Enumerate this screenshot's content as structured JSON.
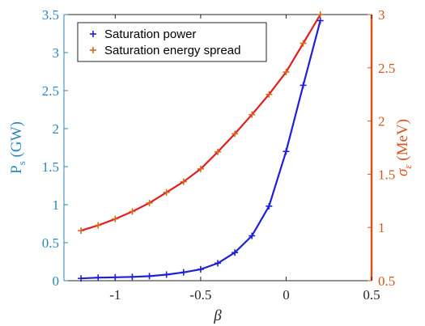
{
  "chart_data": {
    "type": "line",
    "xlabel": "β",
    "ylabel_left": {
      "main": "P",
      "sub": "s",
      "unit": " (GW)"
    },
    "ylabel_right": {
      "main": "σ",
      "sub": "ε",
      "unit": " (MeV)"
    },
    "xlim": [
      -1.3,
      0.5
    ],
    "ylim_left": [
      0,
      3.5
    ],
    "ylim_right": [
      0.5,
      3
    ],
    "xticks": [
      -1,
      -0.5,
      0,
      0.5
    ],
    "xtick_labels": [
      "-1",
      "-0.5",
      "0",
      "0.5"
    ],
    "yticks_left": [
      0,
      0.5,
      1,
      1.5,
      2,
      2.5,
      3,
      3.5
    ],
    "ytick_labels_left": [
      "0",
      "0.5",
      "1",
      "1.5",
      "2",
      "2.5",
      "3",
      "3.5"
    ],
    "yticks_right": [
      0.5,
      1,
      1.5,
      2,
      2.5,
      3
    ],
    "ytick_labels_right": [
      "0.5",
      "1",
      "1.5",
      "2",
      "2.5",
      "3"
    ],
    "legend_position": "top-left",
    "grid": false,
    "colors": {
      "left_axis": "#2a86bf",
      "right_axis": "#d4561f",
      "power_line": "#1f1fd8",
      "spread_line": "#e01f1f",
      "spread_marker": "#d46a1f"
    },
    "series": [
      {
        "name": "Saturation power",
        "axis": "left",
        "marker": "plus",
        "x": [
          -1.2,
          -1.1,
          -1.0,
          -0.9,
          -0.8,
          -0.7,
          -0.6,
          -0.5,
          -0.4,
          -0.3,
          -0.2,
          -0.1,
          0.0,
          0.1,
          0.2
        ],
        "y": [
          0.03,
          0.04,
          0.045,
          0.05,
          0.06,
          0.08,
          0.11,
          0.15,
          0.23,
          0.37,
          0.59,
          0.98,
          1.7,
          2.57,
          3.42
        ]
      },
      {
        "name": "Saturation energy spread",
        "axis": "right",
        "marker": "plus",
        "x": [
          -1.2,
          -1.1,
          -1.0,
          -0.9,
          -0.8,
          -0.7,
          -0.6,
          -0.5,
          -0.4,
          -0.3,
          -0.2,
          -0.1,
          0.0,
          0.1,
          0.2
        ],
        "y": [
          0.97,
          1.02,
          1.08,
          1.15,
          1.23,
          1.33,
          1.43,
          1.55,
          1.71,
          1.88,
          2.06,
          2.25,
          2.46,
          2.73,
          3.0
        ]
      }
    ]
  }
}
